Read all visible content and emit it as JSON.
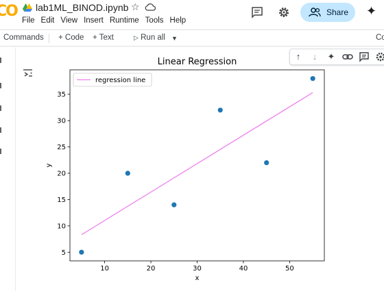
{
  "app": {
    "logo": "CO",
    "notebook_title": "lab1ML_BINOD.ipynb",
    "menu": [
      "File",
      "Edit",
      "View",
      "Insert",
      "Runtime",
      "Tools",
      "Help"
    ],
    "share_label": "Share"
  },
  "toolbar": {
    "commands_label": "Commands",
    "add_code_label": "+ Code",
    "add_text_label": "+ Text",
    "run_all_label": "Run all",
    "right_clip_label": "Co"
  },
  "colors": {
    "accent": "#c2e7ff",
    "scatter": "#1f77b4",
    "regression_line": "#ee82ee"
  },
  "icons": {
    "header": [
      "drive-icon",
      "star-icon",
      "cloud-icon",
      "comment-icon",
      "gear-icon",
      "share-person-icon",
      "sparkle-icon"
    ],
    "cell_toolbar": [
      "arrow-up-icon",
      "arrow-down-icon",
      "sparkle-icon",
      "link-icon",
      "comment-icon",
      "gear-icon"
    ]
  },
  "chart_data": {
    "type": "scatter",
    "title": "Linear Regression",
    "xlabel": "x",
    "ylabel": "y",
    "xlim": [
      2.5,
      57.5
    ],
    "ylim": [
      3.35,
      39.65
    ],
    "xticks": [
      10,
      20,
      30,
      40,
      50
    ],
    "yticks": [
      5,
      10,
      15,
      20,
      25,
      30,
      35
    ],
    "grid": false,
    "legend_position": "upper-left",
    "series": [
      {
        "type": "scatter",
        "x": [
          5,
          15,
          25,
          35,
          45,
          55
        ],
        "y": [
          5,
          20,
          14,
          32,
          22,
          38
        ]
      },
      {
        "type": "line",
        "name": "regression line",
        "x": [
          5,
          55
        ],
        "y": [
          8.33,
          35.33
        ]
      }
    ]
  }
}
